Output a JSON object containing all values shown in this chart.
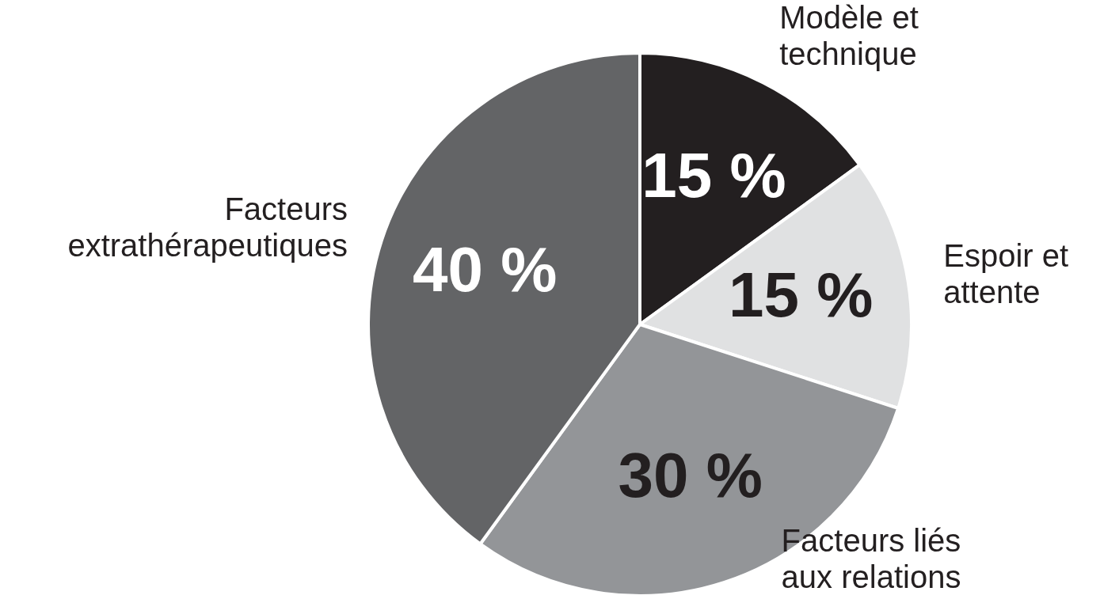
{
  "chart_data": {
    "type": "pie",
    "categories": [
      "Modèle et technique",
      "Espoir et attente",
      "Facteurs liés aux relations",
      "Facteurs extrathérapeutiques"
    ],
    "values": [
      15,
      15,
      30,
      40
    ],
    "colors": [
      "#231f20",
      "#e0e1e2",
      "#939598",
      "#636466"
    ],
    "value_labels": [
      "15 %",
      "15 %",
      "30 %",
      "40 %"
    ],
    "legend": false
  }
}
